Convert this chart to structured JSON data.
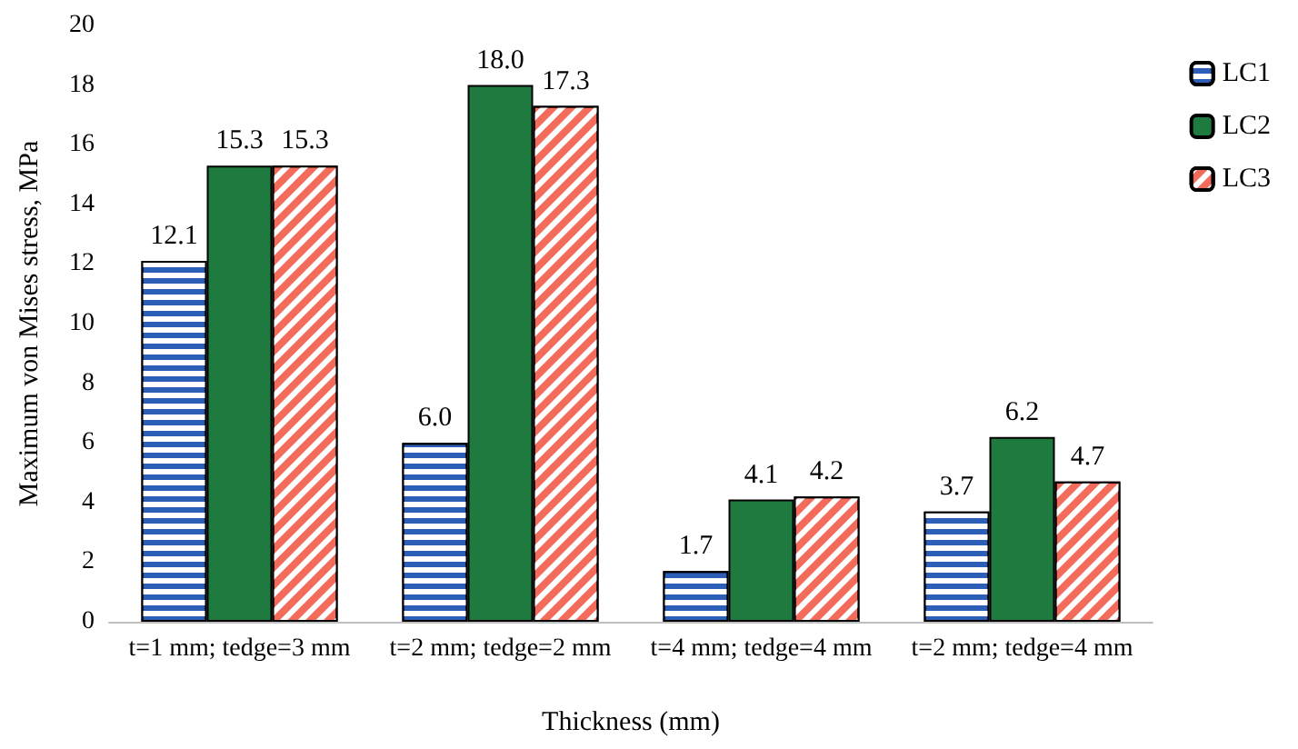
{
  "chart_data": {
    "type": "bar",
    "xlabel": "Thickness (mm)",
    "ylabel": "Maximum von Mises stress, MPa",
    "categories": [
      "t=1 mm; tedge=3 mm",
      "t=2 mm; tedge=2 mm",
      "t=4 mm; tedge=4 mm",
      "t=2 mm; tedge=4 mm"
    ],
    "series": [
      {
        "name": "LC1",
        "color": "#2e5fb8",
        "values": [
          12.1,
          6.0,
          1.7,
          3.7
        ],
        "value_labels": [
          "12.1",
          "6.0",
          "1.7",
          "3.7"
        ]
      },
      {
        "name": "LC2",
        "color": "#1f7a3f",
        "values": [
          15.3,
          18.0,
          4.1,
          6.2
        ],
        "value_labels": [
          "15.3",
          "18.0",
          "4.1",
          "6.2"
        ]
      },
      {
        "name": "LC3",
        "color": "#f26b5b",
        "values": [
          15.3,
          17.3,
          4.2,
          4.7
        ],
        "value_labels": [
          "15.3",
          "17.3",
          "4.2",
          "4.7"
        ]
      }
    ],
    "ylim": [
      0,
      20
    ],
    "yticks": [
      0,
      2,
      4,
      6,
      8,
      10,
      12,
      14,
      16,
      18,
      20
    ],
    "grid": false,
    "legend": "top right"
  }
}
